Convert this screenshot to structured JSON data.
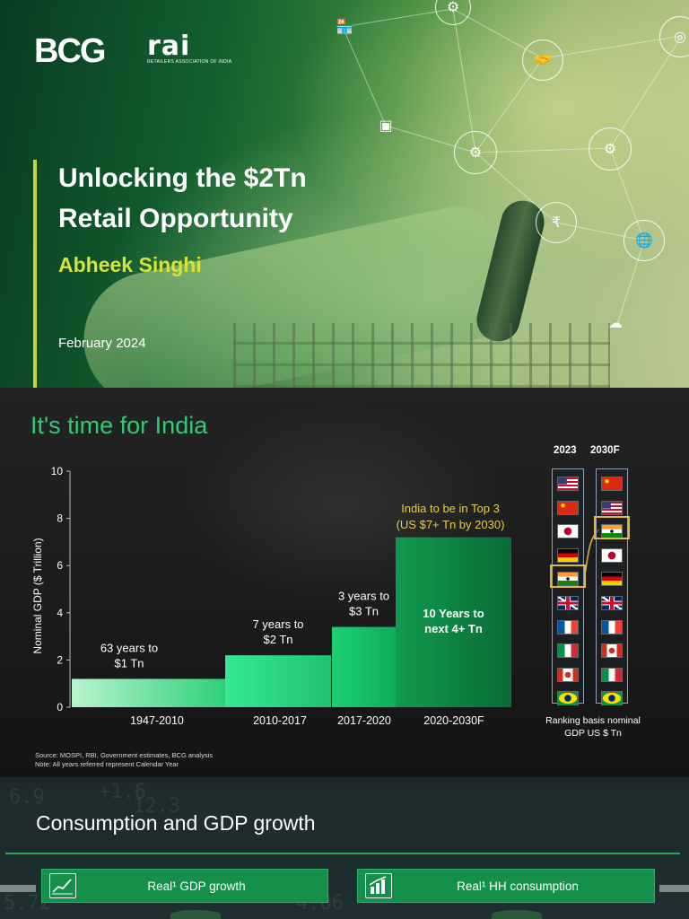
{
  "cover": {
    "logo_bcg": "BCG",
    "logo_rai": "rai",
    "logo_rai_sub": "RETAILERS ASSOCIATION OF INDIA",
    "title_line1": "Unlocking the $2Tn",
    "title_line2": "Retail Opportunity",
    "author": "Abheek Singhi",
    "date": "February 2024",
    "icons": [
      "shop-icon",
      "gear-target-icon",
      "handshake-icon",
      "fingerprint-icon",
      "chip-icon",
      "settings-check-icon",
      "gears-icon",
      "rupee-target-icon",
      "globe-click-icon",
      "cloud-network-icon"
    ]
  },
  "slide2": {
    "title": "It's time for India",
    "source_line1": "Source: MOSPI, RBI, Government estimates, BCG analysis",
    "source_line2": "Note: All years referred represent Calendar Year",
    "chart_data": {
      "type": "bar",
      "ylabel": "Nominal GDP ($ Trillion)",
      "ylim": [
        0,
        10
      ],
      "yticks": [
        "0",
        "2",
        "4",
        "6",
        "8",
        "10"
      ],
      "categories": [
        "1947-2010",
        "2010-2017",
        "2017-2020",
        "2020-2030F"
      ],
      "values": [
        1.2,
        2.2,
        3.4,
        7.2
      ],
      "bar_labels": [
        [
          "63 years to",
          "$1 Tn"
        ],
        [
          "7 years to",
          "$2 Tn"
        ],
        [
          "3 years to",
          "$3 Tn"
        ],
        [
          "10 Years to",
          "next 4+ Tn"
        ]
      ],
      "annotation": [
        "India to be in Top 3",
        "(US $7+ Tn by 2030)"
      ],
      "colors": [
        "#a8efc3",
        "#2fe08c",
        "#14c46a",
        "#0d8d46"
      ]
    },
    "ranking": {
      "year_2023": "2023",
      "year_2030": "2030F",
      "flags_2023": [
        "us",
        "cn",
        "jp",
        "de",
        "in",
        "gb",
        "fr",
        "it",
        "ca",
        "br"
      ],
      "flags_2030": [
        "cn",
        "us",
        "in",
        "jp",
        "de",
        "gb",
        "fr",
        "ca",
        "it",
        "br"
      ],
      "note_line1": "Ranking basis nominal",
      "note_line2": "GDP US $ Tn"
    }
  },
  "slide3": {
    "title": "Consumption and GDP growth",
    "pill1": "Real¹ GDP growth",
    "pill2": "Real¹ HH consumption",
    "pill1_icon": "line-chart-icon",
    "pill2_icon": "bar-chart-icon",
    "bg_numbers": [
      "6.9",
      "+1.6",
      "12.3",
      "4.06",
      "5.72"
    ]
  }
}
